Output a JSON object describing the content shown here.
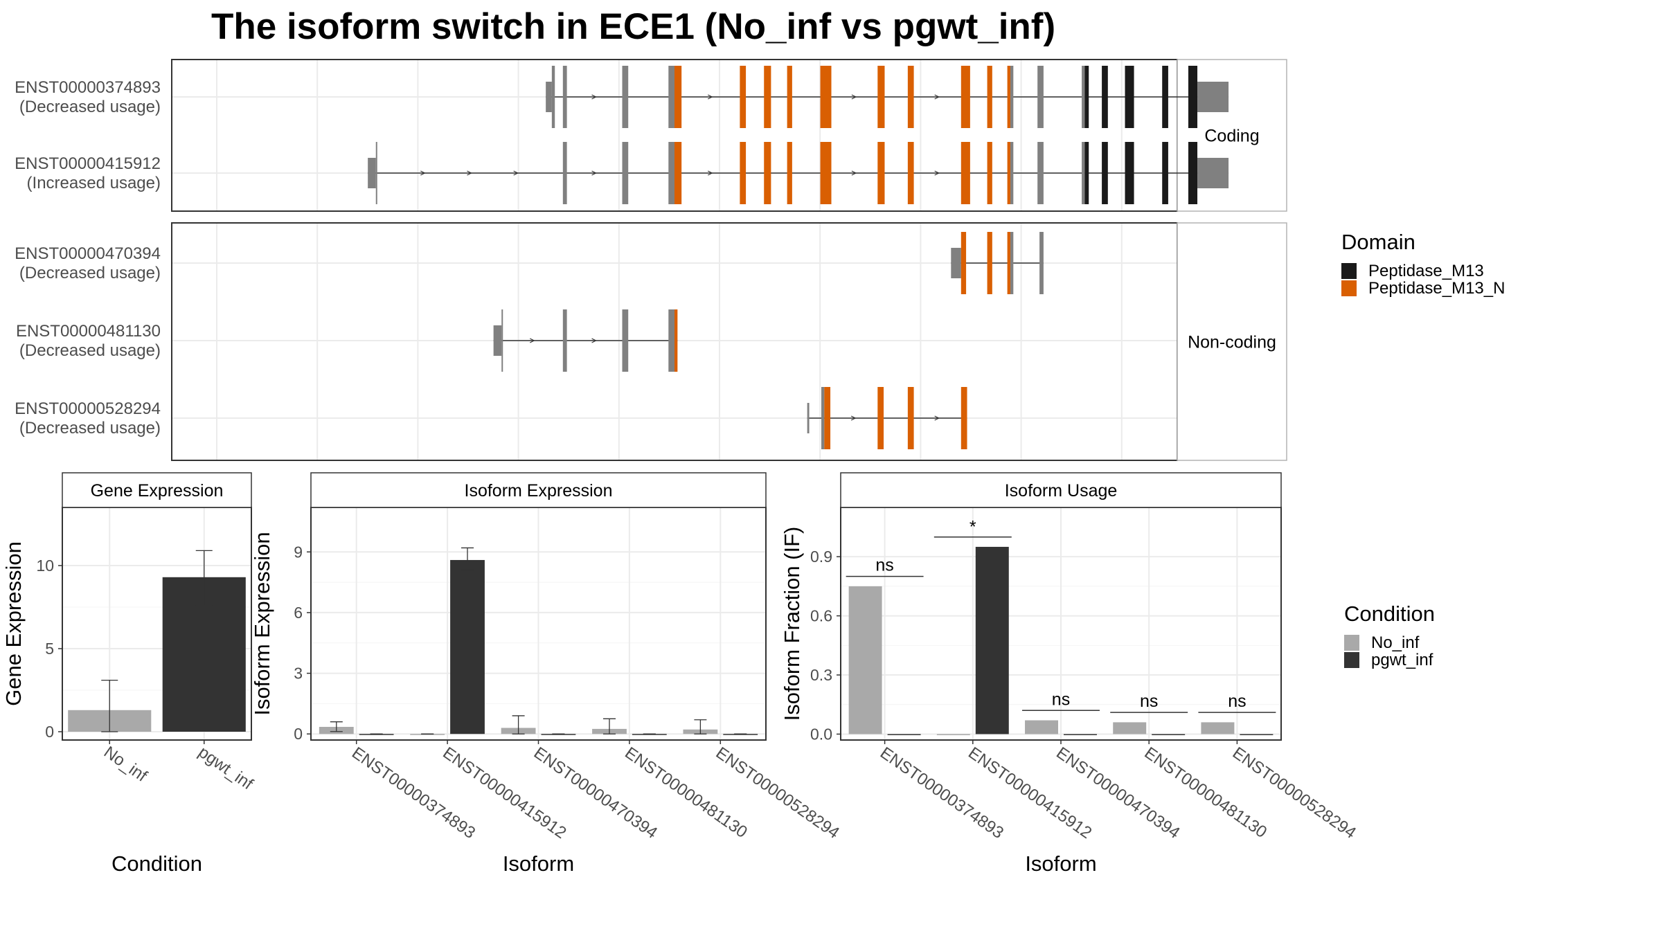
{
  "title": "The isoform switch in ECE1 (No_inf vs pgwt_inf)",
  "colors": {
    "peptidase_m13": "#1a1a1a",
    "peptidase_m13_n": "#d95f02",
    "exon_plain": "#808080",
    "no_inf": "#a9a9a9",
    "pgwt_inf": "#333333",
    "grid": "#ebebeb",
    "strip_bg": "#ffffff",
    "panel_border": "#333333"
  },
  "domain_legend": {
    "title": "Domain",
    "items": [
      {
        "label": "Peptidase_M13",
        "color": "#1a1a1a"
      },
      {
        "label": "Peptidase_M13_N",
        "color": "#d95f02"
      }
    ]
  },
  "condition_legend": {
    "title": "Condition",
    "items": [
      {
        "label": "No_inf",
        "color": "#a9a9a9"
      },
      {
        "label": "pgwt_inf",
        "color": "#333333"
      }
    ]
  },
  "chart_data": [
    {
      "type": "gene-structure",
      "facets": [
        {
          "label": "Coding",
          "transcripts": [
            {
              "id": "ENST00000374893",
              "note": "(Decreased usage)",
              "exons": [
                {
                  "start": 0.372,
                  "end": 0.378,
                  "kind": "utr"
                },
                {
                  "start": 0.378,
                  "end": 0.381,
                  "kind": "cds"
                },
                {
                  "start": 0.389,
                  "end": 0.393,
                  "kind": "cds"
                },
                {
                  "start": 0.448,
                  "end": 0.454,
                  "kind": "cds"
                },
                {
                  "start": 0.494,
                  "end": 0.5,
                  "kind": "cds"
                },
                {
                  "start": 0.5,
                  "end": 0.507,
                  "kind": "n"
                },
                {
                  "start": 0.565,
                  "end": 0.571,
                  "kind": "n"
                },
                {
                  "start": 0.589,
                  "end": 0.596,
                  "kind": "n"
                },
                {
                  "start": 0.612,
                  "end": 0.617,
                  "kind": "n"
                },
                {
                  "start": 0.645,
                  "end": 0.656,
                  "kind": "n"
                },
                {
                  "start": 0.702,
                  "end": 0.709,
                  "kind": "n"
                },
                {
                  "start": 0.732,
                  "end": 0.738,
                  "kind": "n"
                },
                {
                  "start": 0.785,
                  "end": 0.794,
                  "kind": "n"
                },
                {
                  "start": 0.811,
                  "end": 0.816,
                  "kind": "n"
                },
                {
                  "start": 0.831,
                  "end": 0.834,
                  "kind": "n"
                },
                {
                  "start": 0.834,
                  "end": 0.837,
                  "kind": "cds"
                },
                {
                  "start": 0.861,
                  "end": 0.867,
                  "kind": "cds"
                },
                {
                  "start": 0.905,
                  "end": 0.908,
                  "kind": "cds"
                },
                {
                  "start": 0.908,
                  "end": 0.912,
                  "kind": "m13"
                },
                {
                  "start": 0.925,
                  "end": 0.931,
                  "kind": "m13"
                },
                {
                  "start": 0.948,
                  "end": 0.957,
                  "kind": "m13"
                },
                {
                  "start": 0.985,
                  "end": 0.991,
                  "kind": "m13"
                },
                {
                  "start": 1.011,
                  "end": 1.02,
                  "kind": "m13"
                },
                {
                  "start": 1.02,
                  "end": 1.051,
                  "kind": "utr"
                }
              ]
            },
            {
              "id": "ENST00000415912",
              "note": "(Increased usage)",
              "exons": [
                {
                  "start": 0.195,
                  "end": 0.203,
                  "kind": "utr"
                },
                {
                  "start": 0.203,
                  "end": 0.204,
                  "kind": "cds"
                },
                {
                  "start": 0.389,
                  "end": 0.393,
                  "kind": "cds"
                },
                {
                  "start": 0.448,
                  "end": 0.454,
                  "kind": "cds"
                },
                {
                  "start": 0.494,
                  "end": 0.5,
                  "kind": "cds"
                },
                {
                  "start": 0.5,
                  "end": 0.507,
                  "kind": "n"
                },
                {
                  "start": 0.565,
                  "end": 0.571,
                  "kind": "n"
                },
                {
                  "start": 0.589,
                  "end": 0.596,
                  "kind": "n"
                },
                {
                  "start": 0.612,
                  "end": 0.617,
                  "kind": "n"
                },
                {
                  "start": 0.645,
                  "end": 0.656,
                  "kind": "n"
                },
                {
                  "start": 0.702,
                  "end": 0.709,
                  "kind": "n"
                },
                {
                  "start": 0.732,
                  "end": 0.738,
                  "kind": "n"
                },
                {
                  "start": 0.785,
                  "end": 0.794,
                  "kind": "n"
                },
                {
                  "start": 0.811,
                  "end": 0.816,
                  "kind": "n"
                },
                {
                  "start": 0.831,
                  "end": 0.834,
                  "kind": "n"
                },
                {
                  "start": 0.834,
                  "end": 0.837,
                  "kind": "cds"
                },
                {
                  "start": 0.861,
                  "end": 0.867,
                  "kind": "cds"
                },
                {
                  "start": 0.905,
                  "end": 0.908,
                  "kind": "cds"
                },
                {
                  "start": 0.908,
                  "end": 0.912,
                  "kind": "m13"
                },
                {
                  "start": 0.925,
                  "end": 0.931,
                  "kind": "m13"
                },
                {
                  "start": 0.948,
                  "end": 0.957,
                  "kind": "m13"
                },
                {
                  "start": 0.985,
                  "end": 0.991,
                  "kind": "m13"
                },
                {
                  "start": 1.011,
                  "end": 1.02,
                  "kind": "m13"
                },
                {
                  "start": 1.02,
                  "end": 1.051,
                  "kind": "utr"
                }
              ]
            }
          ]
        },
        {
          "label": "Non-coding",
          "transcripts": [
            {
              "id": "ENST00000470394",
              "note": "(Decreased usage)",
              "exons": [
                {
                  "start": 0.775,
                  "end": 0.785,
                  "kind": "utr"
                },
                {
                  "start": 0.785,
                  "end": 0.79,
                  "kind": "n"
                },
                {
                  "start": 0.811,
                  "end": 0.816,
                  "kind": "n"
                },
                {
                  "start": 0.831,
                  "end": 0.834,
                  "kind": "n"
                },
                {
                  "start": 0.834,
                  "end": 0.837,
                  "kind": "cds"
                },
                {
                  "start": 0.863,
                  "end": 0.867,
                  "kind": "cds"
                }
              ]
            },
            {
              "id": "ENST00000481130",
              "note": "(Decreased usage)",
              "exons": [
                {
                  "start": 0.32,
                  "end": 0.328,
                  "kind": "utr"
                },
                {
                  "start": 0.328,
                  "end": 0.329,
                  "kind": "cds"
                },
                {
                  "start": 0.389,
                  "end": 0.393,
                  "kind": "cds"
                },
                {
                  "start": 0.448,
                  "end": 0.454,
                  "kind": "cds"
                },
                {
                  "start": 0.494,
                  "end": 0.5,
                  "kind": "cds"
                },
                {
                  "start": 0.5,
                  "end": 0.503,
                  "kind": "n"
                }
              ]
            },
            {
              "id": "ENST00000528294",
              "note": "(Decreased usage)",
              "exons": [
                {
                  "start": 0.632,
                  "end": 0.634,
                  "kind": "utr"
                },
                {
                  "start": 0.646,
                  "end": 0.649,
                  "kind": "cds"
                },
                {
                  "start": 0.649,
                  "end": 0.655,
                  "kind": "n"
                },
                {
                  "start": 0.702,
                  "end": 0.708,
                  "kind": "n"
                },
                {
                  "start": 0.732,
                  "end": 0.738,
                  "kind": "n"
                },
                {
                  "start": 0.785,
                  "end": 0.791,
                  "kind": "n"
                }
              ]
            }
          ]
        }
      ]
    },
    {
      "type": "bar",
      "strip": "Gene Expression",
      "xlabel": "Condition",
      "ylabel": "Gene Expression",
      "categories": [
        "No_inf",
        "pgwt_inf"
      ],
      "values": [
        1.3,
        9.3
      ],
      "error_low": [
        0.0,
        7.6
      ],
      "error_high": [
        3.1,
        10.9
      ],
      "yticks": [
        0,
        5,
        10
      ],
      "ylim": [
        -0.5,
        13.5
      ]
    },
    {
      "type": "bar",
      "strip": "Isoform Expression",
      "xlabel": "Isoform",
      "ylabel": "Isoform Expression",
      "categories": [
        "ENST00000374893",
        "ENST00000415912",
        "ENST00000470394",
        "ENST00000481130",
        "ENST00000528294"
      ],
      "series": [
        {
          "name": "No_inf",
          "values": [
            0.35,
            0.0,
            0.3,
            0.25,
            0.22
          ],
          "error_low": [
            0.12,
            0.0,
            0.0,
            0.0,
            0.0
          ],
          "error_high": [
            0.6,
            0.0,
            0.9,
            0.75,
            0.7
          ]
        },
        {
          "name": "pgwt_inf",
          "values": [
            0.0,
            8.6,
            0.0,
            0.0,
            0.0
          ],
          "error_low": [
            0.0,
            8.1,
            0.0,
            0.0,
            0.0
          ],
          "error_high": [
            0.0,
            9.2,
            0.0,
            0.0,
            0.0
          ]
        }
      ],
      "yticks": [
        0,
        3,
        6,
        9
      ],
      "ylim": [
        -0.3,
        11.2
      ]
    },
    {
      "type": "bar",
      "strip": "Isoform Usage",
      "xlabel": "Isoform",
      "ylabel": "Isoform Fraction (IF)",
      "categories": [
        "ENST00000374893",
        "ENST00000415912",
        "ENST00000470394",
        "ENST00000481130",
        "ENST00000528294"
      ],
      "series": [
        {
          "name": "No_inf",
          "values": [
            0.75,
            0.0,
            0.07,
            0.06,
            0.06
          ]
        },
        {
          "name": "pgwt_inf",
          "values": [
            0.0,
            0.95,
            0.0,
            0.0,
            0.0
          ]
        }
      ],
      "significance": [
        "ns",
        "*",
        "ns",
        "ns",
        "ns"
      ],
      "significance_level": [
        0.8,
        1.0,
        0.12,
        0.11,
        0.11
      ],
      "yticks": [
        0.0,
        0.3,
        0.6,
        0.9
      ],
      "yticklabels": [
        "0.0",
        "0.3",
        "0.6",
        "0.9"
      ],
      "ylim": [
        -0.03,
        1.15
      ]
    }
  ]
}
